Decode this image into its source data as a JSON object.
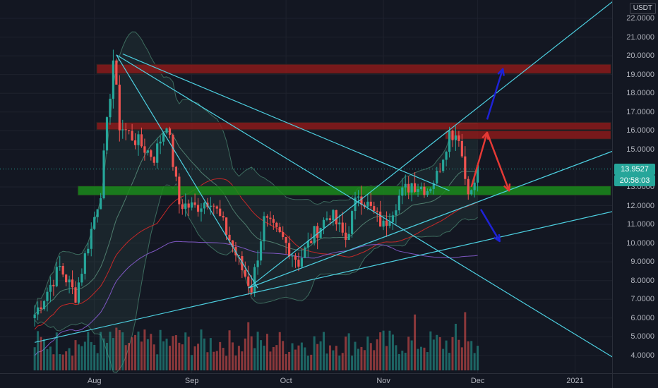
{
  "currency": "USDT",
  "price_axis": {
    "ticks": [
      {
        "value": 22,
        "label": "22.0000"
      },
      {
        "value": 21,
        "label": "21.0000"
      },
      {
        "value": 20,
        "label": "20.0000"
      },
      {
        "value": 19,
        "label": "19.0000"
      },
      {
        "value": 18,
        "label": "18.0000"
      },
      {
        "value": 17,
        "label": "17.0000"
      },
      {
        "value": 16,
        "label": "16.0000"
      },
      {
        "value": 15,
        "label": "15.0000"
      },
      {
        "value": 13,
        "label": "13.0000"
      },
      {
        "value": 12,
        "label": "12.0000"
      },
      {
        "value": 11,
        "label": "11.0000"
      },
      {
        "value": 10,
        "label": "10.0000"
      },
      {
        "value": 9,
        "label": "9.0000"
      },
      {
        "value": 8,
        "label": "8.0000"
      },
      {
        "value": 7,
        "label": "7.0000"
      },
      {
        "value": 6,
        "label": "6.0000"
      },
      {
        "value": 5,
        "label": "5.0000"
      },
      {
        "value": 4,
        "label": "4.0000"
      }
    ]
  },
  "last_price": {
    "value": 13.9527,
    "label": "13.9527",
    "countdown": "20:58:03",
    "color": "#26a69a"
  },
  "time_axis": {
    "labels": [
      {
        "day": 6,
        "label": "Aug"
      },
      {
        "day": 37,
        "label": "Sep"
      },
      {
        "day": 67,
        "label": "Oct"
      },
      {
        "day": 98,
        "label": "Nov"
      },
      {
        "day": 128,
        "label": "Dec"
      },
      {
        "day": 159,
        "label": "2021"
      }
    ]
  },
  "colors": {
    "up": "#26a69a",
    "down": "#ef5350",
    "trendline": "#4dd0e1",
    "resistance_zone": "#8b1a1a",
    "support_zone": "#1b8a1b",
    "bollinger": "#3d6b5e",
    "ma_red": "#c62828",
    "ma_purple": "#7e57c2",
    "arrow_red": "#e53935",
    "arrow_blue": "#1e22d6",
    "background": "#131722",
    "grid": "#1e222d"
  },
  "chart_data": {
    "type": "candlestick",
    "symbol_quote": "USDT",
    "timeframe": "1D",
    "y_range": [
      3.2,
      23.0
    ],
    "x_range_days": [
      -13,
      175
    ],
    "x_day_zero": "2020-07-26",
    "candles_anchor": [
      {
        "day": -13,
        "close": 6.2
      },
      {
        "day": -5,
        "close": 8.7
      },
      {
        "day": 0,
        "close": 7.2
      },
      {
        "day": 8,
        "close": 12.8
      },
      {
        "day": 12,
        "close": 19.8
      },
      {
        "day": 14,
        "close": 16.3
      },
      {
        "day": 25,
        "close": 14.6
      },
      {
        "day": 29,
        "close": 16.5
      },
      {
        "day": 33,
        "close": 12.1
      },
      {
        "day": 38,
        "close": 11.9
      },
      {
        "day": 43,
        "close": 12.4
      },
      {
        "day": 48,
        "close": 10.6
      },
      {
        "day": 53,
        "close": 8.6
      },
      {
        "day": 56,
        "close": 7.6
      },
      {
        "day": 60,
        "close": 11.2
      },
      {
        "day": 66,
        "close": 10.2
      },
      {
        "day": 71,
        "close": 9.0
      },
      {
        "day": 76,
        "close": 10.5
      },
      {
        "day": 81,
        "close": 11.6
      },
      {
        "day": 86,
        "close": 10.2
      },
      {
        "day": 90,
        "close": 12.7
      },
      {
        "day": 94,
        "close": 11.8
      },
      {
        "day": 98,
        "close": 10.9
      },
      {
        "day": 103,
        "close": 12.5
      },
      {
        "day": 107,
        "close": 13.2
      },
      {
        "day": 112,
        "close": 12.9
      },
      {
        "day": 115,
        "close": 13.6
      },
      {
        "day": 119,
        "close": 15.9
      },
      {
        "day": 122,
        "close": 15.8
      },
      {
        "day": 124,
        "close": 13.5
      },
      {
        "day": 126,
        "close": 12.6
      },
      {
        "day": 128,
        "close": 13.95
      }
    ],
    "last_candle_day": 128,
    "volume_peaks": [
      {
        "day": 13,
        "value": 0.55
      },
      {
        "day": 55,
        "value": 0.62
      },
      {
        "day": 108,
        "value": 0.72
      },
      {
        "day": 124,
        "value": 0.75
      },
      {
        "day": 121,
        "value": 0.6
      }
    ],
    "zones": [
      {
        "name": "resistance-upper",
        "from": 19.05,
        "to": 19.55,
        "start_day": 13,
        "end_day": 163,
        "color": "red"
      },
      {
        "name": "resistance-mid-top",
        "from": 16.05,
        "to": 16.45,
        "start_day": 13,
        "end_day": 163,
        "color": "red"
      },
      {
        "name": "resistance-mid-bottom",
        "from": 15.55,
        "to": 16.0,
        "start_day": 124,
        "end_day": 163,
        "color": "red"
      },
      {
        "name": "support",
        "from": 12.55,
        "to": 13.05,
        "start_day": 7,
        "end_day": 163,
        "color": "green"
      }
    ],
    "trendlines": [
      {
        "name": "descending-diagonal",
        "p1": {
          "day": 13,
          "price": 20.05
        },
        "p2": {
          "day": 174,
          "price": 3.6
        }
      },
      {
        "name": "descending-diagonal-2",
        "p1": {
          "day": 13,
          "price": 20.05
        },
        "p2": {
          "day": 58,
          "price": 7.6
        }
      },
      {
        "name": "ascending-steep",
        "p1": {
          "day": 55,
          "price": 7.6
        },
        "p2": {
          "day": 174,
          "price": 23.3
        }
      },
      {
        "name": "ascending-mid",
        "p1": {
          "day": 55,
          "price": 7.6
        },
        "p2": {
          "day": 174,
          "price": 15.1
        }
      },
      {
        "name": "ascending-low",
        "p1": {
          "day": -13,
          "price": 4.7
        },
        "p2": {
          "day": 174,
          "price": 11.8
        }
      },
      {
        "name": "fan-upper",
        "p1": {
          "day": 15,
          "price": 20.1
        },
        "p2": {
          "day": 119,
          "price": 12.8
        }
      }
    ],
    "projection_arrows": [
      {
        "color": "red",
        "points": [
          {
            "day": 126,
            "price": 13.0
          },
          {
            "day": 131,
            "price": 15.9
          },
          {
            "day": 138,
            "price": 12.8
          }
        ]
      },
      {
        "color": "blue",
        "points": [
          {
            "day": 131,
            "price": 16.6
          },
          {
            "day": 136,
            "price": 19.3
          }
        ]
      },
      {
        "color": "blue",
        "points": [
          {
            "day": 129,
            "price": 11.8
          },
          {
            "day": 135,
            "price": 10.1
          }
        ]
      }
    ]
  }
}
